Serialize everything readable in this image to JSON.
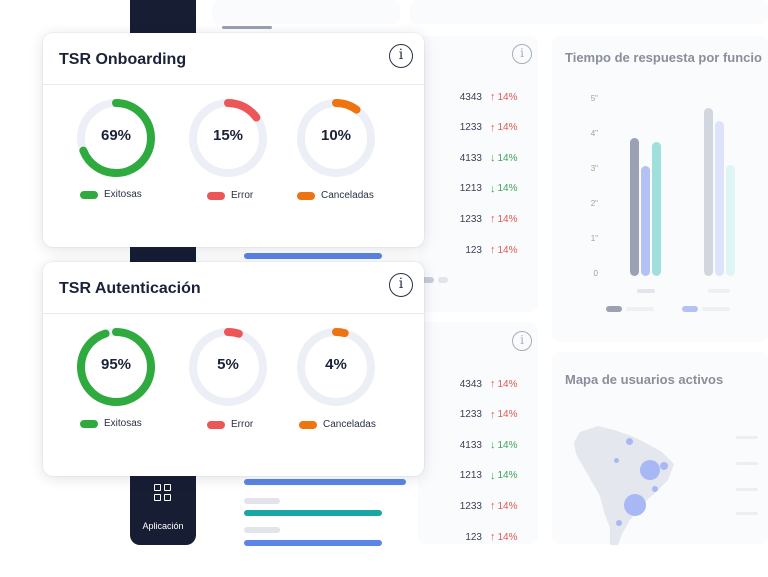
{
  "onboarding": {
    "title": "TSR Onboarding",
    "donuts": [
      {
        "value": "69%",
        "fraction": 0.69,
        "color": "#2eaa3f",
        "legend": "Exitosas"
      },
      {
        "value": "15%",
        "fraction": 0.15,
        "color": "#ec5656",
        "legend": "Error"
      },
      {
        "value": "10%",
        "fraction": 0.1,
        "color": "#ee7411",
        "legend": "Canceladas"
      }
    ]
  },
  "autenticacion": {
    "title": "TSR Autenticación",
    "donuts": [
      {
        "value": "95%",
        "fraction": 0.95,
        "color": "#2eaa3f",
        "legend": "Exitosas"
      },
      {
        "value": "5%",
        "fraction": 0.05,
        "color": "#ec5656",
        "legend": "Error"
      },
      {
        "value": "4%",
        "fraction": 0.04,
        "color": "#ee7411",
        "legend": "Canceladas"
      }
    ]
  },
  "sidebar": {
    "app_label": "Aplicación"
  },
  "table_top": [
    {
      "num": "4343",
      "dir": "up",
      "pct": "14%"
    },
    {
      "num": "1233",
      "dir": "up",
      "pct": "14%"
    },
    {
      "num": "4133",
      "dir": "down",
      "pct": "14%"
    },
    {
      "num": "1213",
      "dir": "down",
      "pct": "14%"
    },
    {
      "num": "1233",
      "dir": "up",
      "pct": "14%"
    },
    {
      "num": "123",
      "dir": "up",
      "pct": "14%"
    }
  ],
  "table_bottom": [
    {
      "num": "4343",
      "dir": "up",
      "pct": "14%"
    },
    {
      "num": "1233",
      "dir": "up",
      "pct": "14%"
    },
    {
      "num": "4133",
      "dir": "down",
      "pct": "14%"
    },
    {
      "num": "1213",
      "dir": "down",
      "pct": "14%"
    },
    {
      "num": "1233",
      "dir": "up",
      "pct": "14%"
    },
    {
      "num": "123",
      "dir": "up",
      "pct": "14%"
    }
  ],
  "response_chart": {
    "title": "Tiempo de respuesta por funcio",
    "y_ticks": [
      "5\"",
      "4\"",
      "3\"",
      "2\"",
      "1\"",
      "0"
    ],
    "colors": {
      "gray": "#9aa1b2",
      "blue": "#b3c1f4",
      "teal": "#9fe0dc"
    }
  },
  "map_panel": {
    "title": "Mapa de usuarios activos"
  }
}
